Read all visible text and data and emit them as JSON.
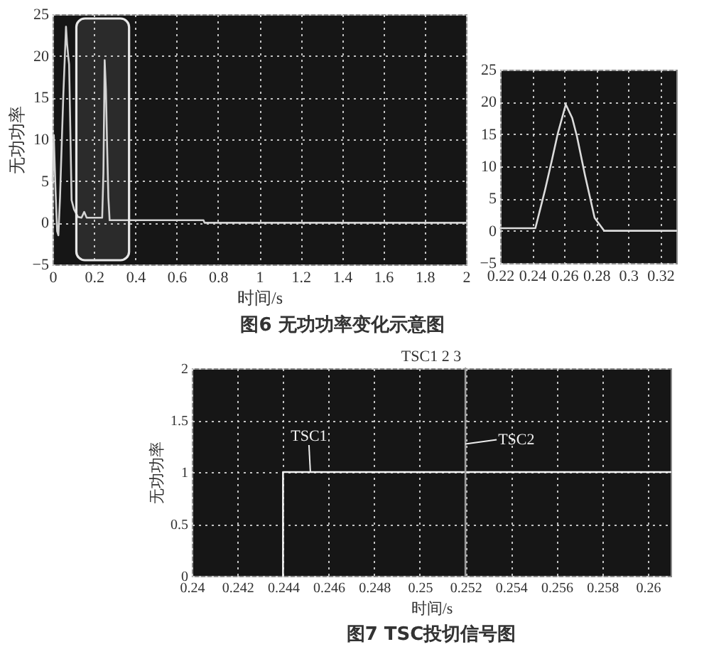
{
  "chart_data": [
    {
      "type": "line",
      "xlabel": "时间/s",
      "ylabel": "无功功率",
      "annotations": [
        "图6  无功功率变化示意图"
      ],
      "x": [
        0,
        0.006,
        0.014,
        0.022,
        0.028,
        0.036,
        0.045,
        0.052,
        0.065,
        0.07,
        0.076,
        0.08,
        0.085,
        0.092,
        0.104,
        0.123,
        0.14,
        0.153,
        0.165,
        0.24,
        0.246,
        0.252,
        0.258,
        0.264,
        0.27,
        0.276,
        0.73,
        0.735,
        2
      ],
      "values": [
        5,
        10.5,
        4,
        -1,
        -1.5,
        3,
        10,
        15.3,
        23.5,
        21.5,
        19.9,
        19,
        12.4,
        2.7,
        1.6,
        0.7,
        0.6,
        1.3,
        0.6,
        0.6,
        6,
        19.5,
        16,
        9,
        3,
        0.3,
        0.3,
        0,
        0
      ],
      "color": "#d2d2d2",
      "line_style": "solid",
      "xlim": [
        0,
        2
      ],
      "ylim": [
        -5,
        25
      ],
      "xticks": [
        0,
        0.2,
        0.4,
        0.6,
        0.8,
        1,
        1.2,
        1.4,
        1.6,
        1.8,
        2
      ],
      "yticks": [
        -5,
        0,
        5,
        10,
        15,
        20,
        25
      ],
      "grid": true,
      "bands": [
        {
          "axis": "x",
          "from": 0.115,
          "to": 0.37,
          "color": "#e8e8e8"
        }
      ]
    },
    {
      "type": "line",
      "x": [
        0.22,
        0.242,
        0.248,
        0.252,
        0.256,
        0.261,
        0.265,
        0.268,
        0.273,
        0.279,
        0.285,
        0.33
      ],
      "values": [
        0.4,
        0.4,
        6.3,
        10.6,
        15.1,
        19.6,
        17.5,
        14.6,
        8.6,
        2,
        0,
        0
      ],
      "color": "#dcdcdc",
      "line_style": "solid",
      "xlim": [
        0.22,
        0.33
      ],
      "ylim": [
        -5,
        25
      ],
      "xticks": [
        0.22,
        0.24,
        0.26,
        0.28,
        0.3,
        0.32
      ],
      "yticks": [
        -5,
        0,
        5,
        10,
        15,
        20,
        25
      ],
      "grid": true
    },
    {
      "type": "line",
      "title": "TSC1 2 3",
      "xlabel": "时间/s",
      "ylabel": "无功功率",
      "series": [
        {
          "color": "#f2f2f2",
          "x": [
            0.244,
            0.244,
            0.261
          ],
          "values": [
            0,
            1,
            1
          ]
        },
        {
          "color": "#9c9c9c",
          "x": [
            0.252,
            0.252
          ],
          "values": [
            0,
            2
          ]
        }
      ],
      "line_style": "solid",
      "xlim": [
        0.24,
        0.261
      ],
      "ylim": [
        0,
        2
      ],
      "xticks": [
        0.24,
        0.242,
        0.244,
        0.246,
        0.248,
        0.25,
        0.252,
        0.254,
        0.256,
        0.258,
        0.26
      ],
      "yticks": [
        0,
        0.5,
        1,
        1.5,
        2
      ],
      "grid": true,
      "annotations": [
        {
          "text": "TSC1",
          "x": 0.2452,
          "y": 1
        },
        {
          "text": "TSC2",
          "x": 0.252,
          "y": 1.27
        },
        "图7  TSC投切信号图"
      ]
    }
  ]
}
